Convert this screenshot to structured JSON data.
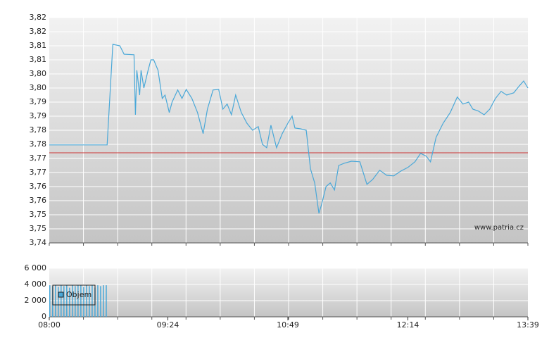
{
  "chart_data": [
    {
      "type": "line",
      "x": [
        "08:00",
        "08:41",
        "08:45",
        "08:50",
        "08:53",
        "09:00",
        "09:01",
        "09:02",
        "09:04",
        "09:05",
        "09:07",
        "09:10",
        "09:12",
        "09:14",
        "09:17",
        "09:20",
        "09:22",
        "09:25",
        "09:27",
        "09:31",
        "09:34",
        "09:37",
        "09:41",
        "09:45",
        "09:49",
        "09:52",
        "09:56",
        "10:00",
        "10:03",
        "10:06",
        "10:09",
        "10:12",
        "10:16",
        "10:20",
        "10:24",
        "10:28",
        "10:31",
        "10:34",
        "10:37",
        "10:41",
        "10:45",
        "10:49",
        "10:52",
        "10:54",
        "10:58",
        "11:02",
        "11:05",
        "11:08",
        "11:11",
        "11:13",
        "11:16",
        "11:19",
        "11:22",
        "11:25",
        "11:29",
        "11:34",
        "11:40",
        "11:45",
        "11:49",
        "11:54",
        "11:59",
        "12:04",
        "12:09",
        "12:14",
        "12:19",
        "12:23",
        "12:27",
        "12:30",
        "12:34",
        "12:39",
        "12:44",
        "12:49",
        "12:53",
        "12:57",
        "13:00",
        "13:04",
        "13:08",
        "13:12",
        "13:16",
        "13:20",
        "13:24",
        "13:29",
        "13:33",
        "13:36",
        "13:39"
      ],
      "series": [
        {
          "color": "#4aa8d8",
          "values": [
            3.7748,
            3.7748,
            3.8105,
            3.81,
            3.807,
            3.8068,
            3.7855,
            3.8013,
            3.7925,
            3.8013,
            3.795,
            3.8013,
            3.805,
            3.805,
            3.8013,
            3.7913,
            3.7925,
            3.7863,
            3.79,
            3.7943,
            3.7913,
            3.7945,
            3.7913,
            3.7863,
            3.7788,
            3.7875,
            3.7943,
            3.7945,
            3.7875,
            3.7893,
            3.7855,
            3.7925,
            3.7863,
            3.7825,
            3.78,
            3.7813,
            3.775,
            3.7738,
            3.7818,
            3.7738,
            3.7788,
            3.7825,
            3.785,
            3.7808,
            3.7805,
            3.78,
            3.7663,
            3.7613,
            3.7505,
            3.7538,
            3.76,
            3.7613,
            3.7588,
            3.7675,
            3.7683,
            3.769,
            3.7688,
            3.7608,
            3.7625,
            3.7658,
            3.764,
            3.7638,
            3.7655,
            3.7668,
            3.7688,
            3.7718,
            3.7708,
            3.7688,
            3.7775,
            3.7825,
            3.7863,
            3.7918,
            3.7893,
            3.79,
            3.7875,
            3.7868,
            3.7855,
            3.7875,
            3.7913,
            3.7938,
            3.7925,
            3.7933,
            3.7958,
            3.7975,
            3.795
          ]
        }
      ],
      "ref_line": 3.772,
      "ref_color": "#cc3333",
      "xlim": [
        "08:00",
        "13:39"
      ],
      "ylim": [
        3.74,
        3.82
      ],
      "yticks": [
        {
          "value": 3.74,
          "label": "3,74"
        },
        {
          "value": 3.745,
          "label": "3,75"
        },
        {
          "value": 3.75,
          "label": "3,75"
        },
        {
          "value": 3.755,
          "label": "3,76"
        },
        {
          "value": 3.76,
          "label": "3,76"
        },
        {
          "value": 3.765,
          "label": "3,77"
        },
        {
          "value": 3.77,
          "label": "3,77"
        },
        {
          "value": 3.775,
          "label": "3,78"
        },
        {
          "value": 3.78,
          "label": "3,78"
        },
        {
          "value": 3.785,
          "label": "3,79"
        },
        {
          "value": 3.79,
          "label": "3,79"
        },
        {
          "value": 3.795,
          "label": "3,80"
        },
        {
          "value": 3.8,
          "label": "3,80"
        },
        {
          "value": 3.805,
          "label": "3,81"
        },
        {
          "value": 3.81,
          "label": "3,81"
        },
        {
          "value": 3.815,
          "label": "3,82"
        },
        {
          "value": 3.82,
          "label": "3,82"
        }
      ],
      "watermark": "www.patria.cz",
      "grid": true
    },
    {
      "type": "bar",
      "x": [
        "08:00",
        "08:02",
        "08:04",
        "08:06",
        "08:08",
        "08:10",
        "08:12",
        "08:14",
        "08:16",
        "08:18",
        "08:20",
        "08:22",
        "08:24",
        "08:26",
        "08:28",
        "08:30",
        "08:32",
        "08:34",
        "08:36",
        "08:38",
        "08:40"
      ],
      "series": [
        {
          "name": "Objem",
          "color": "#4aa8d8",
          "values": [
            3900,
            3800,
            3900,
            3700,
            3900,
            3800,
            3900,
            3600,
            3900,
            3800,
            3900,
            3900,
            3700,
            3900,
            3800,
            3900,
            3600,
            3900,
            3800,
            3900,
            3900
          ]
        }
      ],
      "xlim": [
        "08:00",
        "13:39"
      ],
      "xticks": [
        "08:00",
        "09:24",
        "10:49",
        "12:14",
        "13:39"
      ],
      "ylim": [
        0,
        6000
      ],
      "yticks": [
        0,
        {
          "value": 2000,
          "label": "2 000"
        },
        {
          "value": 4000,
          "label": "4 000"
        },
        {
          "value": 6000,
          "label": "6 000"
        }
      ],
      "grid": true
    }
  ]
}
